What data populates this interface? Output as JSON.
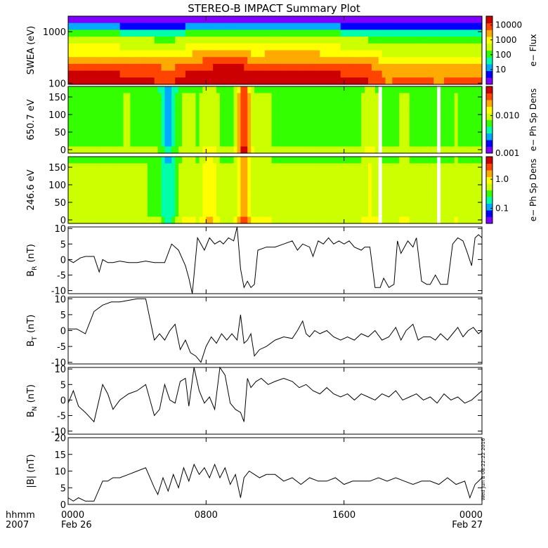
{
  "title": "STEREO-B IMPACT Summary Plot",
  "stamp": "Wed Jun  8 08:22:22 2016",
  "time_axis": {
    "row1_label": "hhmm",
    "row2_label": "2007",
    "ticks": [
      {
        "hour": 0,
        "label": "0000",
        "date": "Feb 26"
      },
      {
        "hour": 8,
        "label": "0800",
        "date": ""
      },
      {
        "hour": 16,
        "label": "1600",
        "date": ""
      },
      {
        "hour": 24,
        "label": "0000",
        "date": "Feb 27"
      }
    ],
    "range_hours": [
      0,
      24
    ]
  },
  "chart_data": [
    {
      "type": "heatmap",
      "ylabel": "SWEA (eV)",
      "yscale": "log",
      "ylim": [
        95,
        2000
      ],
      "yticks": [
        {
          "value": 1000,
          "label": "1000"
        },
        {
          "value": 100,
          "label": "100"
        }
      ],
      "colorbar": {
        "label": "e− Flux",
        "scale": "log",
        "range": [
          1,
          40000
        ],
        "ticks": [
          {
            "value": 10000,
            "label": "10000"
          },
          {
            "value": 1000,
            "label": "1000"
          },
          {
            "value": 100,
            "label": "100"
          },
          {
            "value": 10,
            "label": "10"
          }
        ]
      },
      "colors": [
        "#7f00ff",
        "#0000ff",
        "#00aaff",
        "#00ffaa",
        "#33ff00",
        "#ccff00",
        "#ffff00",
        "#ffaa00",
        "#ff4400",
        "#cc0000"
      ],
      "field_rows_top_to_bottom": [
        0.05,
        0.2,
        0.4,
        0.52,
        0.6,
        0.68,
        0.76,
        0.84,
        0.9,
        0.94
      ],
      "field_time_mod": [
        {
          "hour": 0,
          "mod": 0
        },
        {
          "hour": 3,
          "mod": 0
        },
        {
          "hour": 6,
          "mod": -0.05
        },
        {
          "hour": 7.2,
          "mod": 0.03
        },
        {
          "hour": 8.5,
          "mod": 0.06
        },
        {
          "hour": 10,
          "mod": 0.08
        },
        {
          "hour": 10.6,
          "mod": 0.02
        },
        {
          "hour": 14,
          "mod": 0.04
        },
        {
          "hour": 17.6,
          "mod": -0.04
        },
        {
          "hour": 18.5,
          "mod": -0.12
        },
        {
          "hour": 20,
          "mod": -0.1
        },
        {
          "hour": 21.5,
          "mod": -0.12
        },
        {
          "hour": 23,
          "mod": -0.1
        },
        {
          "hour": 24,
          "mod": -0.11
        }
      ]
    },
    {
      "type": "heatmap",
      "ylabel": "650.7 eV",
      "ylim": [
        -10,
        180
      ],
      "yticks": [
        {
          "value": 150,
          "label": "150"
        },
        {
          "value": 100,
          "label": "100"
        },
        {
          "value": 50,
          "label": "50"
        },
        {
          "value": 0,
          "label": "0"
        }
      ],
      "colorbar": {
        "label": "e− Ph Sp Dens",
        "scale": "log",
        "range": [
          0.001,
          0.06
        ],
        "ticks": [
          {
            "value": 0.01,
            "label": "0.010"
          },
          {
            "value": 0.001,
            "label": "0.001"
          }
        ]
      },
      "colors": [
        "#7f00ff",
        "#0000ff",
        "#00aaff",
        "#00ffaa",
        "#33ff00",
        "#ccff00",
        "#ffff00",
        "#ffaa00",
        "#ff4400",
        "#cc0000"
      ],
      "gaps": [
        [
          18.0,
          18.15
        ],
        [
          21.4,
          21.6
        ]
      ],
      "field_base": 0.46,
      "field_events": [
        {
          "hour": 3.4,
          "mod": 0.06
        },
        {
          "hour": 5.8,
          "mod": -0.18
        },
        {
          "hour": 7.0,
          "mod": 0.08
        },
        {
          "hour": 8.2,
          "mod": 0.14
        },
        {
          "hour": 10.2,
          "mod": 0.42
        },
        {
          "hour": 11.4,
          "mod": 0.08
        },
        {
          "hour": 13.2,
          "mod": 0.04
        },
        {
          "hour": 17.5,
          "mod": 0.1
        },
        {
          "hour": 19.5,
          "mod": 0.06
        },
        {
          "hour": 22.5,
          "mod": 0.04
        }
      ]
    },
    {
      "type": "heatmap",
      "ylabel": "246.6 eV",
      "ylim": [
        -10,
        180
      ],
      "yticks": [
        {
          "value": 150,
          "label": "150"
        },
        {
          "value": 100,
          "label": "100"
        },
        {
          "value": 50,
          "label": "50"
        },
        {
          "value": 0,
          "label": "0"
        }
      ],
      "colorbar": {
        "label": "e− Ph Sp Dens",
        "scale": "log",
        "range": [
          0.03,
          6
        ],
        "ticks": [
          {
            "value": 1,
            "label": "1.0"
          },
          {
            "value": 0.1,
            "label": "0.1"
          }
        ]
      },
      "colors": [
        "#7f00ff",
        "#0000ff",
        "#00aaff",
        "#00ffaa",
        "#33ff00",
        "#ccff00",
        "#ffff00",
        "#ffaa00",
        "#ff4400",
        "#cc0000"
      ],
      "gaps": [
        [
          18.0,
          18.15
        ],
        [
          21.4,
          21.6
        ]
      ],
      "field_base": 0.5,
      "field_events": [
        {
          "hour": 3.4,
          "mod": 0.04
        },
        {
          "hour": 5.8,
          "mod": -0.2
        },
        {
          "hour": 7.0,
          "mod": 0.08
        },
        {
          "hour": 8.2,
          "mod": 0.16
        },
        {
          "hour": 10.2,
          "mod": 0.3
        },
        {
          "hour": 11.4,
          "mod": 0.1
        },
        {
          "hour": 13.2,
          "mod": 0.04
        },
        {
          "hour": 17.5,
          "mod": 0.12
        },
        {
          "hour": 19.5,
          "mod": 0.06
        },
        {
          "hour": 22.5,
          "mod": 0.04
        }
      ]
    },
    {
      "type": "line",
      "ylabel": "B",
      "ylabel_sub": "R",
      "ylabel_unit": "(nT)",
      "ylim": [
        -11,
        10.5
      ],
      "yticks": [
        {
          "value": 10,
          "label": "10"
        },
        {
          "value": 5,
          "label": "5"
        },
        {
          "value": 0,
          "label": "0"
        },
        {
          "value": -5,
          "label": "-5"
        },
        {
          "value": -10,
          "label": "-10"
        }
      ],
      "x": [
        0,
        0.3,
        0.7,
        1.0,
        1.5,
        1.8,
        2.0,
        2.3,
        2.6,
        3.0,
        3.5,
        4.0,
        4.5,
        5.0,
        5.6,
        6.0,
        6.4,
        6.8,
        7.0,
        7.2,
        7.5,
        7.7,
        7.9,
        8.2,
        8.5,
        8.8,
        9.0,
        9.3,
        9.6,
        9.8,
        10.0,
        10.2,
        10.4,
        10.6,
        10.8,
        11.0,
        11.5,
        12.0,
        12.5,
        13.0,
        13.3,
        13.6,
        14.0,
        14.2,
        14.5,
        14.8,
        15.1,
        15.4,
        15.7,
        16.0,
        16.3,
        16.6,
        17.0,
        17.2,
        17.5,
        17.8,
        18.1,
        18.3,
        18.6,
        18.9,
        19.1,
        19.3,
        19.5,
        19.7,
        20.0,
        20.2,
        20.5,
        20.8,
        21.0,
        21.3,
        21.6,
        22.0,
        22.3,
        22.6,
        22.9,
        23.1,
        23.4,
        23.6,
        23.8,
        24.0
      ],
      "y": [
        0,
        -1,
        0.5,
        1,
        1,
        -4,
        0,
        -1,
        -1,
        -0.5,
        -1,
        -1,
        -0.5,
        -1,
        -1,
        5,
        3,
        -2,
        -6,
        -11,
        7,
        5,
        3,
        7,
        5,
        6,
        5,
        7,
        6,
        11,
        -3,
        -9,
        -7,
        -9,
        -8,
        3,
        4,
        4,
        5,
        6,
        3,
        5,
        4,
        1,
        6,
        5,
        7,
        5,
        6,
        5,
        6,
        4,
        3,
        4,
        4,
        -9,
        -9,
        -6,
        -9,
        -8,
        6,
        2,
        4,
        6,
        4,
        7,
        -7,
        -8,
        -8,
        -5,
        -8,
        -8,
        5,
        7,
        6,
        3,
        -2,
        7,
        8,
        7
      ],
      "color": "#000000"
    },
    {
      "type": "line",
      "ylabel": "B",
      "ylabel_sub": "T",
      "ylabel_unit": "(nT)",
      "ylim": [
        -10.5,
        10.5
      ],
      "yticks": [
        {
          "value": 10,
          "label": "10"
        },
        {
          "value": 5,
          "label": "5"
        },
        {
          "value": 0,
          "label": "0"
        },
        {
          "value": -5,
          "label": "-5"
        },
        {
          "value": -10,
          "label": "-10"
        }
      ],
      "x": [
        0,
        0.5,
        1.0,
        1.5,
        2.0,
        2.5,
        3.0,
        3.5,
        4.0,
        4.5,
        5.0,
        5.3,
        5.6,
        5.9,
        6.2,
        6.5,
        6.8,
        7.1,
        7.4,
        7.7,
        8.0,
        8.3,
        8.6,
        8.9,
        9.2,
        9.5,
        9.8,
        10.0,
        10.2,
        10.4,
        10.6,
        10.8,
        11.1,
        11.5,
        12.0,
        12.5,
        13.0,
        13.3,
        13.6,
        13.8,
        14.0,
        14.3,
        14.6,
        15.0,
        15.4,
        15.8,
        16.2,
        16.6,
        17.0,
        17.4,
        17.8,
        18.2,
        18.6,
        19.0,
        19.3,
        19.6,
        20.0,
        20.3,
        20.6,
        21.0,
        21.3,
        21.6,
        22.0,
        22.3,
        22.6,
        22.9,
        23.2,
        23.5,
        23.8,
        24.0
      ],
      "y": [
        0.5,
        0.5,
        -1,
        6,
        8,
        9,
        9,
        9.5,
        10,
        10,
        -3,
        -1,
        -3,
        0,
        2,
        -6,
        -3,
        -7,
        -8,
        -10,
        -5,
        -2,
        -4,
        -1,
        -3,
        -1,
        -3,
        5,
        -4,
        -3,
        -1,
        -8,
        -6,
        -5,
        -3,
        -2,
        -2.5,
        0,
        3,
        -1,
        -2,
        0,
        -1,
        0,
        -2,
        -3,
        -2,
        -3,
        -1,
        -2,
        0,
        -3,
        -2,
        1,
        -3,
        0,
        2,
        -3,
        -2,
        -2,
        -3,
        -1,
        -3,
        -1,
        1,
        -2,
        0,
        1,
        -1,
        0
      ],
      "color": "#000000"
    },
    {
      "type": "line",
      "ylabel": "B",
      "ylabel_sub": "N",
      "ylabel_unit": "(nT)",
      "ylim": [
        -11,
        10.5
      ],
      "yticks": [
        {
          "value": 10,
          "label": "10"
        },
        {
          "value": 5,
          "label": "5"
        },
        {
          "value": 0,
          "label": "0"
        },
        {
          "value": -5,
          "label": "-5"
        },
        {
          "value": -10,
          "label": "-10"
        }
      ],
      "x": [
        0,
        0.3,
        0.6,
        1.0,
        1.5,
        2.0,
        2.3,
        2.6,
        3.0,
        3.5,
        4.0,
        4.5,
        5.0,
        5.3,
        5.6,
        5.9,
        6.2,
        6.5,
        6.8,
        7.0,
        7.3,
        7.6,
        7.9,
        8.2,
        8.5,
        8.8,
        9.1,
        9.4,
        9.7,
        10.0,
        10.2,
        10.4,
        10.6,
        10.9,
        11.2,
        11.6,
        12.0,
        12.5,
        13.0,
        13.4,
        13.8,
        14.2,
        14.6,
        15.0,
        15.4,
        15.8,
        16.2,
        16.6,
        17.0,
        17.4,
        17.8,
        18.2,
        18.6,
        19.0,
        19.4,
        19.8,
        20.2,
        20.6,
        21.0,
        21.4,
        21.8,
        22.2,
        22.6,
        23.0,
        23.4,
        23.8,
        24.0
      ],
      "y": [
        -1,
        3,
        -2,
        -4,
        -7,
        5,
        2,
        -3,
        0,
        2,
        3,
        5,
        -5,
        -3,
        5,
        0,
        -1,
        6,
        7,
        -2,
        11,
        3,
        -1,
        1,
        -3,
        11,
        8,
        -1,
        -3,
        -4,
        -7,
        7,
        4,
        6,
        7,
        5,
        6,
        7,
        6,
        4,
        5,
        3,
        2,
        4,
        2,
        1,
        2,
        0,
        2,
        1,
        0,
        2,
        1,
        3,
        0,
        1,
        2,
        0,
        1,
        -1,
        2,
        0,
        1,
        -1,
        0,
        2,
        3
      ],
      "color": "#000000"
    },
    {
      "type": "line",
      "ylabel": "|B| (nT)",
      "ylim": [
        0,
        20
      ],
      "yticks": [
        {
          "value": 20,
          "label": "20"
        },
        {
          "value": 15,
          "label": "15"
        },
        {
          "value": 10,
          "label": "10"
        },
        {
          "value": 5,
          "label": "5"
        },
        {
          "value": 0,
          "label": "0"
        }
      ],
      "x": [
        0,
        0.3,
        0.6,
        1.0,
        1.5,
        2.0,
        2.3,
        2.6,
        3.0,
        3.5,
        4.0,
        4.5,
        5.0,
        5.2,
        5.5,
        5.8,
        6.1,
        6.4,
        6.7,
        7.0,
        7.3,
        7.6,
        7.9,
        8.2,
        8.5,
        8.8,
        9.1,
        9.4,
        9.7,
        10.0,
        10.2,
        10.5,
        10.8,
        11.1,
        11.5,
        12.0,
        12.5,
        13.0,
        13.5,
        14.0,
        14.5,
        15.0,
        15.5,
        16.0,
        16.5,
        17.0,
        17.5,
        18.0,
        18.5,
        19.0,
        19.5,
        20.0,
        20.5,
        21.0,
        21.5,
        22.0,
        22.5,
        23.0,
        23.3,
        23.6,
        24.0
      ],
      "y": [
        2,
        1,
        2,
        1,
        1,
        7,
        7,
        8,
        8,
        9,
        10,
        11,
        5,
        3,
        8,
        4,
        9,
        5,
        11,
        7,
        12,
        9,
        11,
        8,
        12,
        8,
        11,
        6,
        9,
        2,
        8,
        10,
        9,
        8,
        9,
        9,
        7,
        8,
        6,
        8,
        7,
        7,
        8,
        6,
        7,
        7,
        7,
        8,
        7,
        8,
        7,
        6,
        7,
        7,
        6,
        8,
        6,
        7,
        2,
        6,
        8
      ],
      "color": "#000000"
    }
  ]
}
